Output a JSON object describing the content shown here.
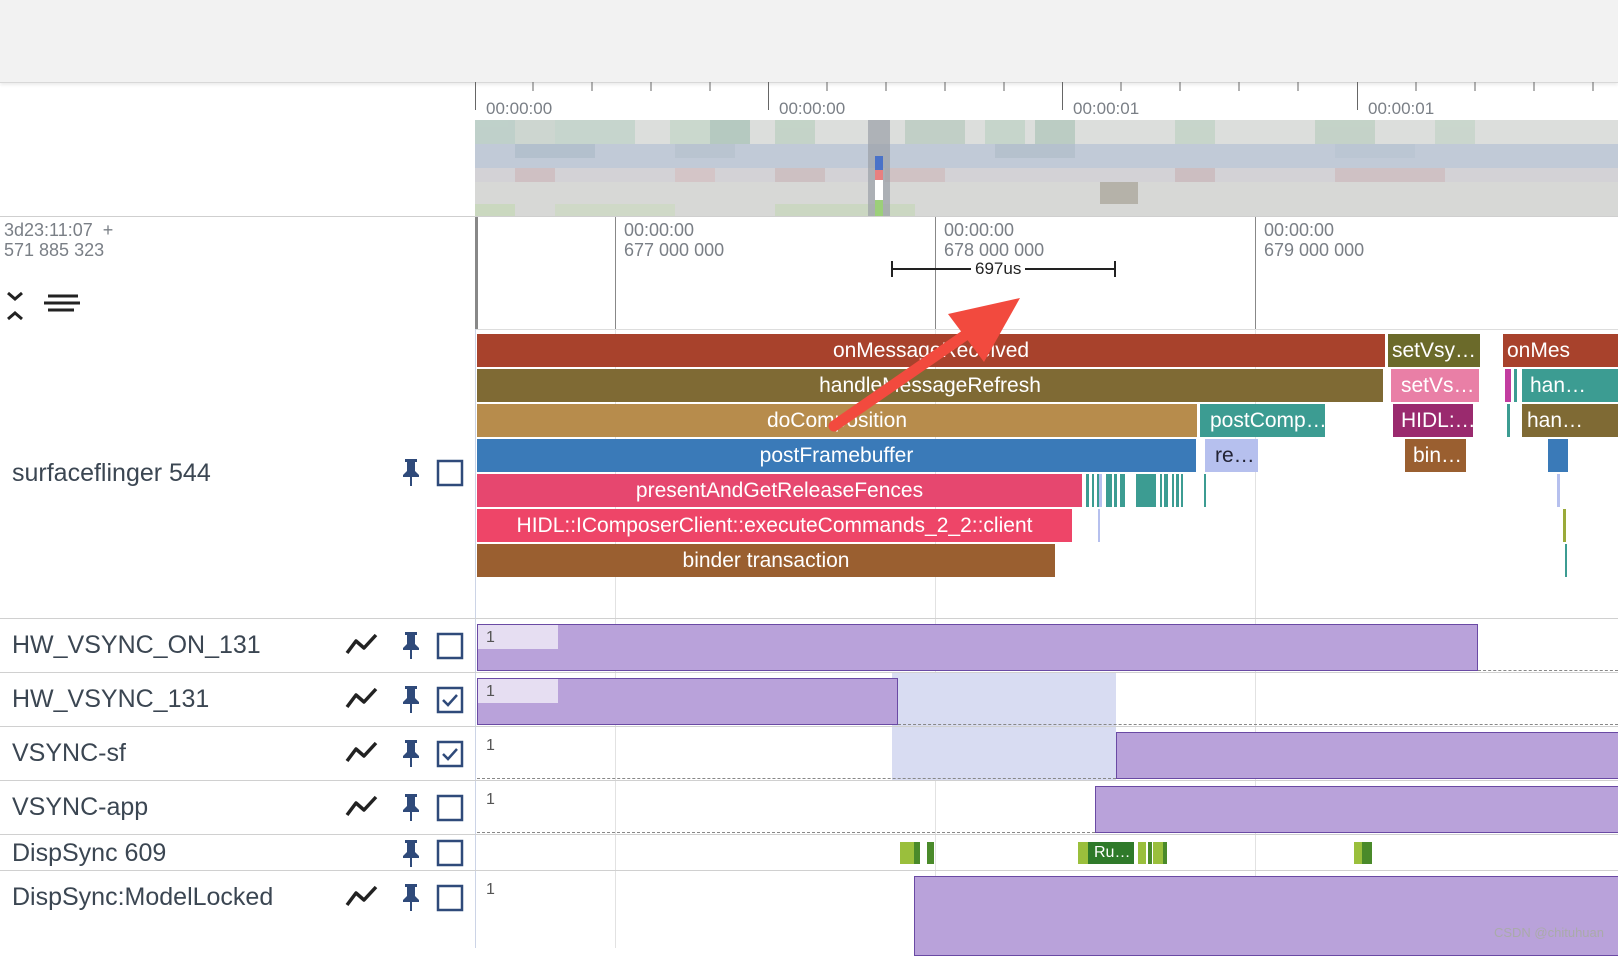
{
  "overview": {
    "ticks": [
      "00:00:00",
      "00:00:00",
      "00:00:01",
      "00:00:01"
    ]
  },
  "timeline": {
    "offset_line1": "3d23:11:07  +",
    "offset_line2": "571 885 323",
    "ticks": [
      {
        "t": "00:00:00",
        "ns": "677 000 000"
      },
      {
        "t": "00:00:00",
        "ns": "678 000 000"
      },
      {
        "t": "00:00:00",
        "ns": "679 000 000"
      }
    ],
    "measure": "697us"
  },
  "process": {
    "name": "surfaceflinger 544",
    "slices": [
      {
        "label": "onMessageReceived",
        "color": "#a8422c"
      },
      {
        "label": "handleMessageRefresh",
        "color": "#7f6a34"
      },
      {
        "label": "doComposition",
        "color": "#b78c4c"
      },
      {
        "label": "postFramebuffer",
        "color": "#3a7ab8"
      },
      {
        "label": "presentAndGetReleaseFences",
        "color": "#e6476f"
      },
      {
        "label": "HIDL::IComposerClient::executeCommands_2_2::client",
        "color": "#ee4568"
      },
      {
        "label": "binder transaction",
        "color": "#9a5f30"
      },
      {
        "label": "setVsy…",
        "color": "#6b6a2a"
      },
      {
        "label": "setVs…",
        "color": "#e97fa6"
      },
      {
        "label": "HIDL:…",
        "color": "#9a2a6e"
      },
      {
        "label": "bin…",
        "color": "#9a5f30"
      },
      {
        "label": "postComp…",
        "color": "#3c9c92"
      },
      {
        "label": "re…",
        "color": "#b6c0ee"
      },
      {
        "label": "onMes",
        "color": "#a8422c"
      },
      {
        "label": "han…",
        "color": "#3c9c92"
      },
      {
        "label": "han…",
        "color": "#7f6a34"
      }
    ]
  },
  "tracks": [
    {
      "name": "HW_VSYNC_ON_131",
      "checked": false,
      "value": "1"
    },
    {
      "name": "HW_VSYNC_131",
      "checked": true,
      "value": "1"
    },
    {
      "name": "VSYNC-sf",
      "checked": true,
      "value": "1"
    },
    {
      "name": "VSYNC-app",
      "checked": false,
      "value": "1"
    },
    {
      "name": "DispSync 609",
      "checked": false,
      "value": ""
    },
    {
      "name": "DispSync:ModelLocked",
      "checked": false,
      "value": "1"
    }
  ],
  "dispsync_slice": "Ru…",
  "watermark": "CSDN @chituhuan"
}
